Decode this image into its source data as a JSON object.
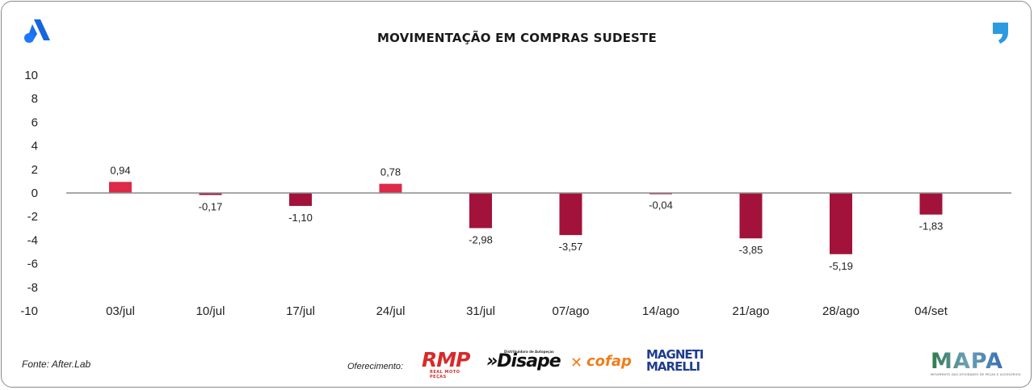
{
  "chart_data": {
    "type": "bar",
    "title": "MOVIMENTAÇÃO EM COMPRAS SUDESTE",
    "categories": [
      "03/jul",
      "10/jul",
      "17/jul",
      "24/jul",
      "31/jul",
      "07/ago",
      "14/ago",
      "21/ago",
      "28/ago",
      "04/set"
    ],
    "values": [
      0.94,
      -0.17,
      -1.1,
      0.78,
      -2.98,
      -3.57,
      -0.04,
      -3.85,
      -5.19,
      -1.83
    ],
    "value_labels": [
      "0,94",
      "-0,17",
      "-1,10",
      "0,78",
      "-2,98",
      "-3,57",
      "-0,04",
      "-3,85",
      "-5,19",
      "-1,83"
    ],
    "y_ticks": [
      10,
      8,
      6,
      4,
      2,
      0,
      -2,
      -4,
      -6,
      -8,
      -10
    ],
    "ylim": [
      -10,
      10
    ],
    "xlabel": "",
    "ylabel": "",
    "grid": false,
    "colors": {
      "positive": "#dc2a48",
      "negative": "#a3123a",
      "axis": "#8c8c8c"
    }
  },
  "footer": {
    "source": "Fonte: After.Lab",
    "offer_label": "Oferecimento:"
  },
  "sponsors": {
    "rmp": {
      "name": "RMP",
      "tagline": "REAL MOTO PEÇAS"
    },
    "disape": {
      "name": "»Disape",
      "tagline": "Distribuidora de Autopeças"
    },
    "cofap": {
      "name": "cofap"
    },
    "magneti": {
      "line1": "MAGNETI",
      "line2": "MARELLI"
    },
    "mapa": {
      "name": "MAPA",
      "tagline": "MOVIMENTO DAS ATIVIDADES DE PEÇAS E ACESSÓRIOS"
    }
  },
  "icons": {
    "top_left": "after-lab-logo-icon",
    "top_right": "comma-logo-icon"
  }
}
